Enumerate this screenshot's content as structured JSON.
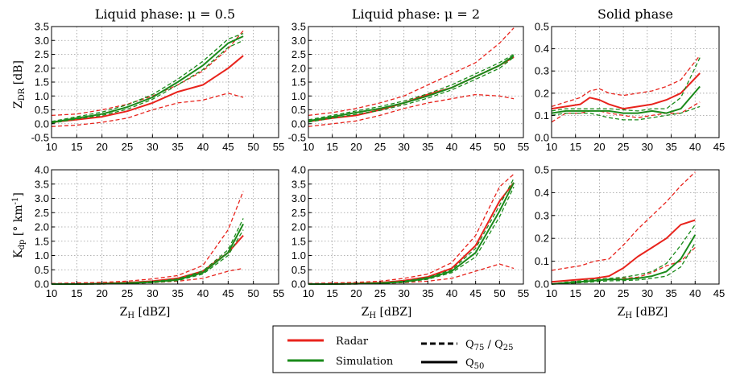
{
  "colors": {
    "radar": "#e8231c",
    "simulation": "#1a8a1a",
    "grid": "#9a9a9a"
  },
  "legend": {
    "radar": "Radar",
    "simulation": "Simulation",
    "quantile_q": "Q",
    "quantile_75": "75",
    "quantile_sep": " / ",
    "quantile_25": "25",
    "median_q": "Q",
    "median_50": "50"
  },
  "y_labels": {
    "zdr_main": "Z",
    "zdr_sub": "DR",
    "zdr_unit": " [dB]",
    "kdp_main": "K",
    "kdp_sub": "dp",
    "kdp_unit_pre": " [° km",
    "kdp_unit_sup": "-1",
    "kdp_unit_post": "]"
  },
  "x_label": {
    "main": "Z",
    "sub": "H",
    "unit": " [dBZ]"
  },
  "chart_data": [
    {
      "type": "line",
      "title": "Liquid phase: μ = 0.5",
      "row": "zdr",
      "column": 0,
      "xlim": [
        10,
        55
      ],
      "ylim": [
        -0.5,
        3.5
      ],
      "xticks": [
        10,
        15,
        20,
        25,
        30,
        35,
        40,
        45,
        50,
        55
      ],
      "yticks": [
        -0.5,
        0.0,
        0.5,
        1.0,
        1.5,
        2.0,
        2.5,
        3.0,
        3.5
      ],
      "x": [
        10,
        15,
        20,
        25,
        30,
        35,
        40,
        45,
        48
      ],
      "series": [
        {
          "color": "radar",
          "style": "solid",
          "values": [
            0.05,
            0.15,
            0.25,
            0.45,
            0.75,
            1.15,
            1.4,
            2.0,
            2.45
          ]
        },
        {
          "color": "radar",
          "style": "dashed",
          "values": [
            0.3,
            0.35,
            0.5,
            0.7,
            1.0,
            1.4,
            1.9,
            2.7,
            3.35
          ]
        },
        {
          "color": "radar",
          "style": "dashed",
          "values": [
            -0.1,
            -0.05,
            0.05,
            0.2,
            0.5,
            0.75,
            0.85,
            1.1,
            0.95
          ]
        },
        {
          "color": "simulation",
          "style": "solid",
          "values": [
            0.05,
            0.2,
            0.35,
            0.6,
            0.95,
            1.5,
            2.1,
            2.9,
            3.15
          ]
        },
        {
          "color": "simulation",
          "style": "dashed",
          "values": [
            0.08,
            0.25,
            0.42,
            0.68,
            1.05,
            1.6,
            2.25,
            3.05,
            3.25
          ]
        },
        {
          "color": "simulation",
          "style": "dashed",
          "values": [
            0.02,
            0.17,
            0.3,
            0.52,
            0.88,
            1.4,
            1.95,
            2.75,
            3.0
          ]
        }
      ]
    },
    {
      "type": "line",
      "title": "Liquid phase: μ = 2",
      "row": "zdr",
      "column": 1,
      "xlim": [
        10,
        55
      ],
      "ylim": [
        -0.5,
        3.5
      ],
      "xticks": [
        10,
        15,
        20,
        25,
        30,
        35,
        40,
        45,
        50,
        55
      ],
      "yticks": [
        -0.5,
        0.0,
        0.5,
        1.0,
        1.5,
        2.0,
        2.5,
        3.0,
        3.5
      ],
      "x": [
        10,
        15,
        20,
        25,
        30,
        35,
        40,
        45,
        50,
        53
      ],
      "series": [
        {
          "color": "radar",
          "style": "solid",
          "values": [
            0.08,
            0.2,
            0.3,
            0.5,
            0.75,
            1.05,
            1.3,
            1.7,
            2.1,
            2.4
          ]
        },
        {
          "color": "radar",
          "style": "dashed",
          "values": [
            0.3,
            0.4,
            0.55,
            0.75,
            1.0,
            1.4,
            1.8,
            2.2,
            2.9,
            3.45
          ]
        },
        {
          "color": "radar",
          "style": "dashed",
          "values": [
            -0.1,
            0.0,
            0.1,
            0.3,
            0.55,
            0.75,
            0.9,
            1.05,
            1.0,
            0.9
          ]
        },
        {
          "color": "simulation",
          "style": "solid",
          "values": [
            0.1,
            0.25,
            0.4,
            0.55,
            0.75,
            1.0,
            1.3,
            1.7,
            2.1,
            2.45
          ]
        },
        {
          "color": "simulation",
          "style": "dashed",
          "values": [
            0.14,
            0.3,
            0.46,
            0.62,
            0.82,
            1.08,
            1.4,
            1.8,
            2.2,
            2.5
          ]
        },
        {
          "color": "simulation",
          "style": "dashed",
          "values": [
            0.06,
            0.2,
            0.34,
            0.48,
            0.68,
            0.92,
            1.22,
            1.6,
            2.0,
            2.4
          ]
        }
      ]
    },
    {
      "type": "line",
      "title": "Solid phase",
      "row": "zdr",
      "column": 2,
      "xlim": [
        10,
        45
      ],
      "ylim": [
        0.0,
        0.5
      ],
      "xticks": [
        10,
        15,
        20,
        25,
        30,
        35,
        40,
        45
      ],
      "yticks": [
        0.0,
        0.1,
        0.2,
        0.3,
        0.4,
        0.5
      ],
      "x": [
        10,
        13,
        16,
        18,
        20,
        22,
        25,
        28,
        31,
        34,
        37,
        41
      ],
      "series": [
        {
          "color": "radar",
          "style": "solid",
          "values": [
            0.13,
            0.14,
            0.15,
            0.18,
            0.17,
            0.15,
            0.13,
            0.14,
            0.15,
            0.17,
            0.2,
            0.29
          ]
        },
        {
          "color": "radar",
          "style": "dashed",
          "values": [
            0.14,
            0.16,
            0.18,
            0.21,
            0.22,
            0.2,
            0.19,
            0.2,
            0.21,
            0.23,
            0.26,
            0.37
          ]
        },
        {
          "color": "radar",
          "style": "dashed",
          "values": [
            0.07,
            0.11,
            0.11,
            0.12,
            0.12,
            0.11,
            0.1,
            0.09,
            0.1,
            0.11,
            0.11,
            0.16
          ]
        },
        {
          "color": "simulation",
          "style": "solid",
          "values": [
            0.11,
            0.12,
            0.12,
            0.12,
            0.12,
            0.12,
            0.11,
            0.11,
            0.12,
            0.11,
            0.13,
            0.23
          ]
        },
        {
          "color": "simulation",
          "style": "dashed",
          "values": [
            0.12,
            0.13,
            0.13,
            0.13,
            0.13,
            0.13,
            0.125,
            0.12,
            0.13,
            0.13,
            0.18,
            0.36
          ]
        },
        {
          "color": "simulation",
          "style": "dashed",
          "values": [
            0.1,
            0.11,
            0.11,
            0.11,
            0.1,
            0.09,
            0.08,
            0.08,
            0.09,
            0.1,
            0.11,
            0.14
          ]
        }
      ]
    },
    {
      "type": "line",
      "title": "",
      "row": "kdp",
      "column": 0,
      "xlim": [
        10,
        55
      ],
      "ylim": [
        0.0,
        4.0
      ],
      "xticks": [
        10,
        15,
        20,
        25,
        30,
        35,
        40,
        45,
        50,
        55
      ],
      "yticks": [
        0.0,
        0.5,
        1.0,
        1.5,
        2.0,
        2.5,
        3.0,
        3.5,
        4.0
      ],
      "x": [
        10,
        15,
        20,
        25,
        30,
        35,
        40,
        45,
        48
      ],
      "series": [
        {
          "color": "radar",
          "style": "solid",
          "values": [
            0.0,
            0.0,
            0.02,
            0.05,
            0.1,
            0.2,
            0.45,
            1.1,
            1.7
          ]
        },
        {
          "color": "radar",
          "style": "dashed",
          "values": [
            0.02,
            0.04,
            0.06,
            0.1,
            0.18,
            0.3,
            0.65,
            1.9,
            3.25
          ]
        },
        {
          "color": "radar",
          "style": "dashed",
          "values": [
            0.0,
            0.0,
            0.0,
            0.02,
            0.05,
            0.1,
            0.2,
            0.45,
            0.55
          ]
        },
        {
          "color": "simulation",
          "style": "solid",
          "values": [
            0.0,
            0.0,
            0.01,
            0.03,
            0.07,
            0.15,
            0.4,
            1.1,
            2.1
          ]
        },
        {
          "color": "simulation",
          "style": "dashed",
          "values": [
            0.0,
            0.0,
            0.01,
            0.04,
            0.09,
            0.18,
            0.46,
            1.2,
            2.3
          ]
        },
        {
          "color": "simulation",
          "style": "dashed",
          "values": [
            0.0,
            0.0,
            0.0,
            0.02,
            0.05,
            0.12,
            0.35,
            1.0,
            1.9
          ]
        }
      ]
    },
    {
      "type": "line",
      "title": "",
      "row": "kdp",
      "column": 1,
      "xlim": [
        10,
        55
      ],
      "ylim": [
        0.0,
        4.0
      ],
      "xticks": [
        10,
        15,
        20,
        25,
        30,
        35,
        40,
        45,
        50,
        55
      ],
      "yticks": [
        0.0,
        0.5,
        1.0,
        1.5,
        2.0,
        2.5,
        3.0,
        3.5,
        4.0
      ],
      "x": [
        10,
        15,
        20,
        25,
        30,
        35,
        40,
        45,
        50,
        53
      ],
      "series": [
        {
          "color": "radar",
          "style": "solid",
          "values": [
            0.0,
            0.0,
            0.02,
            0.05,
            0.12,
            0.25,
            0.55,
            1.35,
            2.9,
            3.55
          ]
        },
        {
          "color": "radar",
          "style": "dashed",
          "values": [
            0.02,
            0.04,
            0.06,
            0.1,
            0.2,
            0.35,
            0.75,
            1.7,
            3.4,
            3.85
          ]
        },
        {
          "color": "radar",
          "style": "dashed",
          "values": [
            0.0,
            0.0,
            0.0,
            0.02,
            0.05,
            0.1,
            0.2,
            0.45,
            0.7,
            0.55
          ]
        },
        {
          "color": "simulation",
          "style": "solid",
          "values": [
            0.0,
            0.0,
            0.01,
            0.03,
            0.08,
            0.2,
            0.45,
            1.1,
            2.55,
            3.55
          ]
        },
        {
          "color": "simulation",
          "style": "dashed",
          "values": [
            0.0,
            0.0,
            0.01,
            0.04,
            0.1,
            0.23,
            0.5,
            1.25,
            2.75,
            3.7
          ]
        },
        {
          "color": "simulation",
          "style": "dashed",
          "values": [
            0.0,
            0.0,
            0.0,
            0.02,
            0.06,
            0.17,
            0.4,
            0.95,
            2.35,
            3.4
          ]
        }
      ]
    },
    {
      "type": "line",
      "title": "",
      "row": "kdp",
      "column": 2,
      "xlim": [
        10,
        45
      ],
      "ylim": [
        0.0,
        0.5
      ],
      "xticks": [
        10,
        15,
        20,
        25,
        30,
        35,
        40,
        45
      ],
      "yticks": [
        0.0,
        0.1,
        0.2,
        0.3,
        0.4,
        0.5
      ],
      "x": [
        10,
        13,
        16,
        19,
        22,
        25,
        28,
        31,
        34,
        37,
        40
      ],
      "series": [
        {
          "color": "radar",
          "style": "solid",
          "values": [
            0.01,
            0.015,
            0.02,
            0.025,
            0.035,
            0.07,
            0.12,
            0.16,
            0.2,
            0.26,
            0.28
          ]
        },
        {
          "color": "radar",
          "style": "dashed",
          "values": [
            0.06,
            0.07,
            0.08,
            0.1,
            0.11,
            0.17,
            0.24,
            0.3,
            0.36,
            0.43,
            0.49
          ]
        },
        {
          "color": "radar",
          "style": "dashed",
          "values": [
            0.0,
            0.005,
            0.01,
            0.015,
            0.02,
            0.025,
            0.03,
            0.05,
            0.08,
            0.1,
            0.16
          ]
        },
        {
          "color": "simulation",
          "style": "solid",
          "values": [
            0.0,
            0.005,
            0.01,
            0.015,
            0.02,
            0.02,
            0.025,
            0.035,
            0.055,
            0.11,
            0.215
          ]
        },
        {
          "color": "simulation",
          "style": "dashed",
          "values": [
            0.0,
            0.008,
            0.014,
            0.02,
            0.025,
            0.03,
            0.04,
            0.055,
            0.09,
            0.17,
            0.26
          ]
        },
        {
          "color": "simulation",
          "style": "dashed",
          "values": [
            0.0,
            0.002,
            0.006,
            0.01,
            0.014,
            0.015,
            0.018,
            0.025,
            0.035,
            0.075,
            0.18
          ]
        }
      ]
    }
  ]
}
